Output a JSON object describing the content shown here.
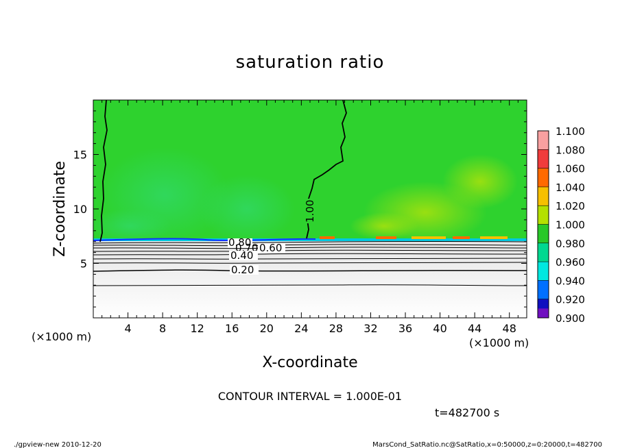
{
  "chart_data": {
    "type": "heatmap",
    "title": "saturation ratio",
    "xlabel": "X-coordinate",
    "ylabel": "Z-coordinate",
    "x_unit": "(×1000 m)",
    "z_unit": "(×1000 m)",
    "xlim": [
      0,
      50
    ],
    "ylim": [
      0,
      20
    ],
    "x_ticks": [
      4,
      8,
      12,
      16,
      20,
      24,
      28,
      32,
      36,
      40,
      44,
      48
    ],
    "y_ticks": [
      5,
      10,
      15
    ],
    "colorbar": {
      "levels": [
        "1.100",
        "1.080",
        "1.060",
        "1.040",
        "1.020",
        "1.000",
        "0.980",
        "0.960",
        "0.940",
        "0.920",
        "0.900"
      ],
      "colors": [
        "#f8a0a0",
        "#f03c3c",
        "#ff6a00",
        "#f6c000",
        "#b4e000",
        "#28c828",
        "#00d890",
        "#00e8e0",
        "#0070ff",
        "#1010c0",
        "#7010c0"
      ]
    },
    "contour_labels": [
      "0.80",
      "0.70",
      "0.60",
      "0.40",
      "0.20",
      "1.00"
    ],
    "contour_interval_text": "CONTOUR INTERVAL = 1.000E-01",
    "time_text": "t=482700 s",
    "footer_left": "./gpview-new   2010-12-20",
    "footer_right": "MarsCond_SatRatio.nc@SatRatio,x=0:50000,z=0:20000,t=482700"
  }
}
